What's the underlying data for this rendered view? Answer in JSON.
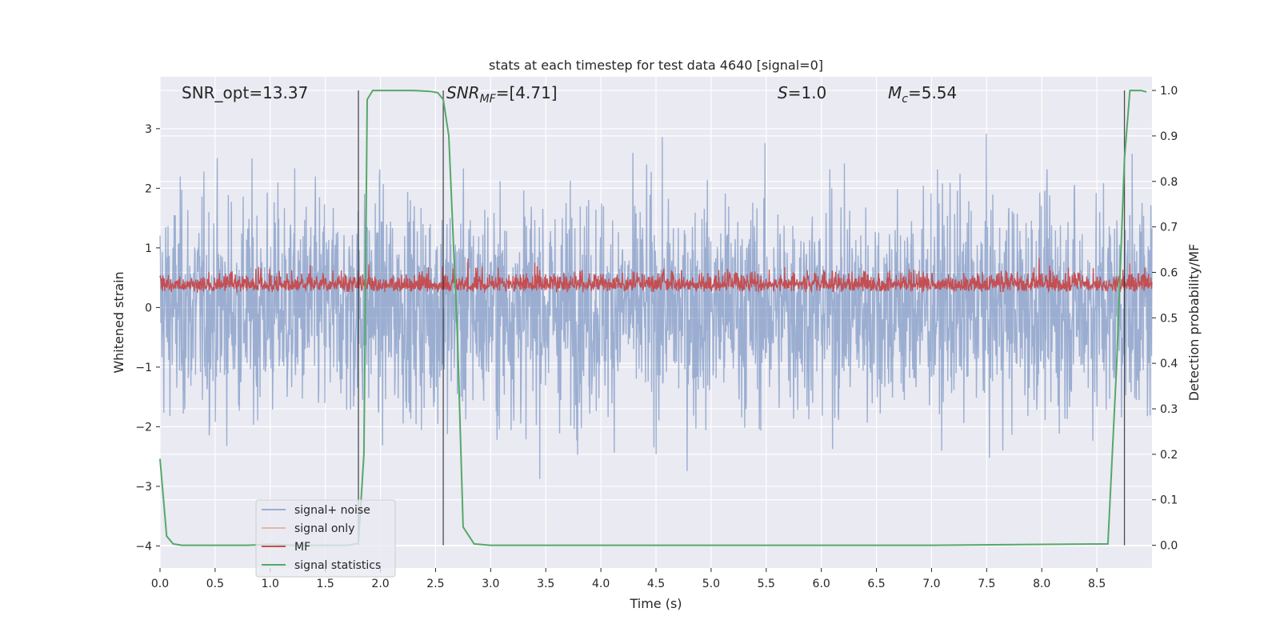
{
  "chart_data": {
    "type": "line",
    "title": "stats at each timestep for test data 4640 [signal=0]",
    "xlabel": "Time (s)",
    "ylabel_left": "Whitened strain",
    "ylabel_right": "Detection probability/MF",
    "xlim": [
      0.0,
      9.0
    ],
    "ylim_left": [
      -4.37,
      3.87
    ],
    "ylim_right": [
      -0.05,
      1.03
    ],
    "xticks": [
      "0.0",
      "0.5",
      "1.0",
      "1.5",
      "2.0",
      "2.5",
      "3.0",
      "3.5",
      "4.0",
      "4.5",
      "5.0",
      "5.5",
      "6.0",
      "6.5",
      "7.0",
      "7.5",
      "8.0",
      "8.5"
    ],
    "yticks_left": [
      "3",
      "2",
      "1",
      "0",
      "−1",
      "−2",
      "−3",
      "−4"
    ],
    "yticks_right": [
      "1.0",
      "0.9",
      "0.8",
      "0.7",
      "0.6",
      "0.5",
      "0.4",
      "0.3",
      "0.2",
      "0.1",
      "0.0"
    ],
    "grid": true,
    "legend_position": "lower-left",
    "annotations": {
      "snr_opt": "SNR_opt=13.37",
      "snr_mf_main": "SNR",
      "snr_mf_sub": "MF",
      "snr_mf_rest": "=[4.71]",
      "s_main": "S",
      "s_rest": "=1.0",
      "mc_main": "M",
      "mc_sub": "c",
      "mc_rest": "=5.54"
    },
    "series": [
      {
        "name": "signal+ noise",
        "color": "#4c72b0",
        "alpha": 0.5,
        "axis": "left",
        "description": "whitened strain, noise amplitude ~1"
      },
      {
        "name": "signal only",
        "color": "#dd8452",
        "alpha": 0.5,
        "axis": "left",
        "values": []
      },
      {
        "name": "MF",
        "color": "#c44e52",
        "axis": "right",
        "description": "matched filter output, ~0.53-0.66"
      },
      {
        "name": "signal statistics",
        "color": "#55a868",
        "axis": "right",
        "x": [
          0.0,
          0.06,
          0.12,
          0.2,
          0.5,
          0.8,
          1.0,
          1.2,
          1.5,
          1.7,
          1.8,
          1.85,
          1.88,
          1.93,
          2.0,
          2.3,
          2.45,
          2.52,
          2.57,
          2.62,
          2.7,
          2.75,
          2.85,
          3.0,
          5.0,
          7.0,
          8.6,
          8.68,
          8.75,
          8.8,
          8.85,
          8.9,
          8.95
        ],
        "y": [
          0.19,
          0.02,
          0.003,
          0.0,
          0.0,
          0.0,
          0.002,
          0.0,
          0.0,
          0.0,
          0.004,
          0.2,
          0.98,
          1.0,
          1.0,
          1.0,
          0.998,
          0.995,
          0.98,
          0.9,
          0.45,
          0.04,
          0.003,
          0.0,
          0.0,
          0.0,
          0.003,
          0.4,
          0.85,
          1.0,
          1.0,
          1.0,
          0.997
        ]
      }
    ],
    "vertical_lines_x": [
      1.8,
      2.57,
      8.75
    ]
  },
  "legend": {
    "items": [
      {
        "label": "signal+ noise",
        "color": "#4c72b0",
        "alpha": 0.5
      },
      {
        "label": "signal only",
        "color": "#dd8452",
        "alpha": 0.5
      },
      {
        "label": "MF",
        "color": "#c44e52",
        "alpha": 1
      },
      {
        "label": "signal statistics",
        "color": "#55a868",
        "alpha": 1
      }
    ]
  },
  "colors": {
    "axes_bg": "#eaeaf2",
    "grid": "#ffffff",
    "vline": "#262626"
  }
}
